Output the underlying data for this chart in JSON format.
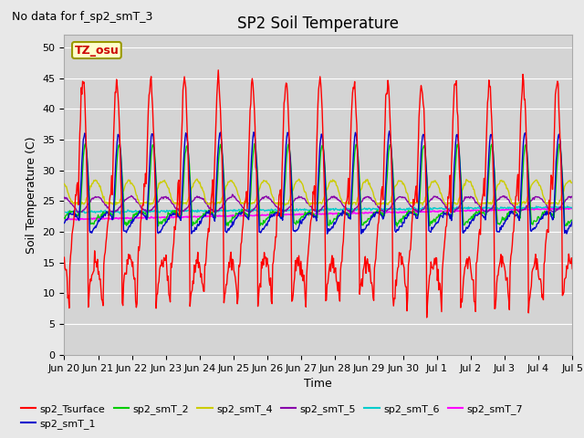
{
  "title": "SP2 Soil Temperature",
  "no_data_label": "No data for f_sp2_smT_3",
  "tz_label": "TZ_osu",
  "ylabel": "Soil Temperature (C)",
  "xlabel": "Time",
  "ylim": [
    0,
    52
  ],
  "yticks": [
    0,
    5,
    10,
    15,
    20,
    25,
    30,
    35,
    40,
    45,
    50
  ],
  "x_tick_labels": [
    "Jun 20",
    "Jun 21",
    "Jun 22",
    "Jun 23",
    "Jun 24",
    "Jun 25",
    "Jun 26",
    "Jun 27",
    "Jun 28",
    "Jun 29",
    "Jun 30",
    "Jul 1",
    "Jul 2",
    "Jul 3",
    "Jul 4",
    "Jul 5"
  ],
  "figure_bg": "#e8e8e8",
  "plot_bg": "#d4d4d4",
  "grid_color": "#ffffff",
  "series_colors": {
    "sp2_Tsurface": "#ff0000",
    "sp2_smT_1": "#0000cc",
    "sp2_smT_2": "#00cc00",
    "sp2_smT_4": "#cccc00",
    "sp2_smT_5": "#8800aa",
    "sp2_smT_6": "#00cccc",
    "sp2_smT_7": "#ff00ff"
  },
  "n_days": 15,
  "n_pts_per_day": 48,
  "title_fontsize": 12,
  "axis_label_fontsize": 9,
  "tick_fontsize": 8,
  "legend_fontsize": 8
}
